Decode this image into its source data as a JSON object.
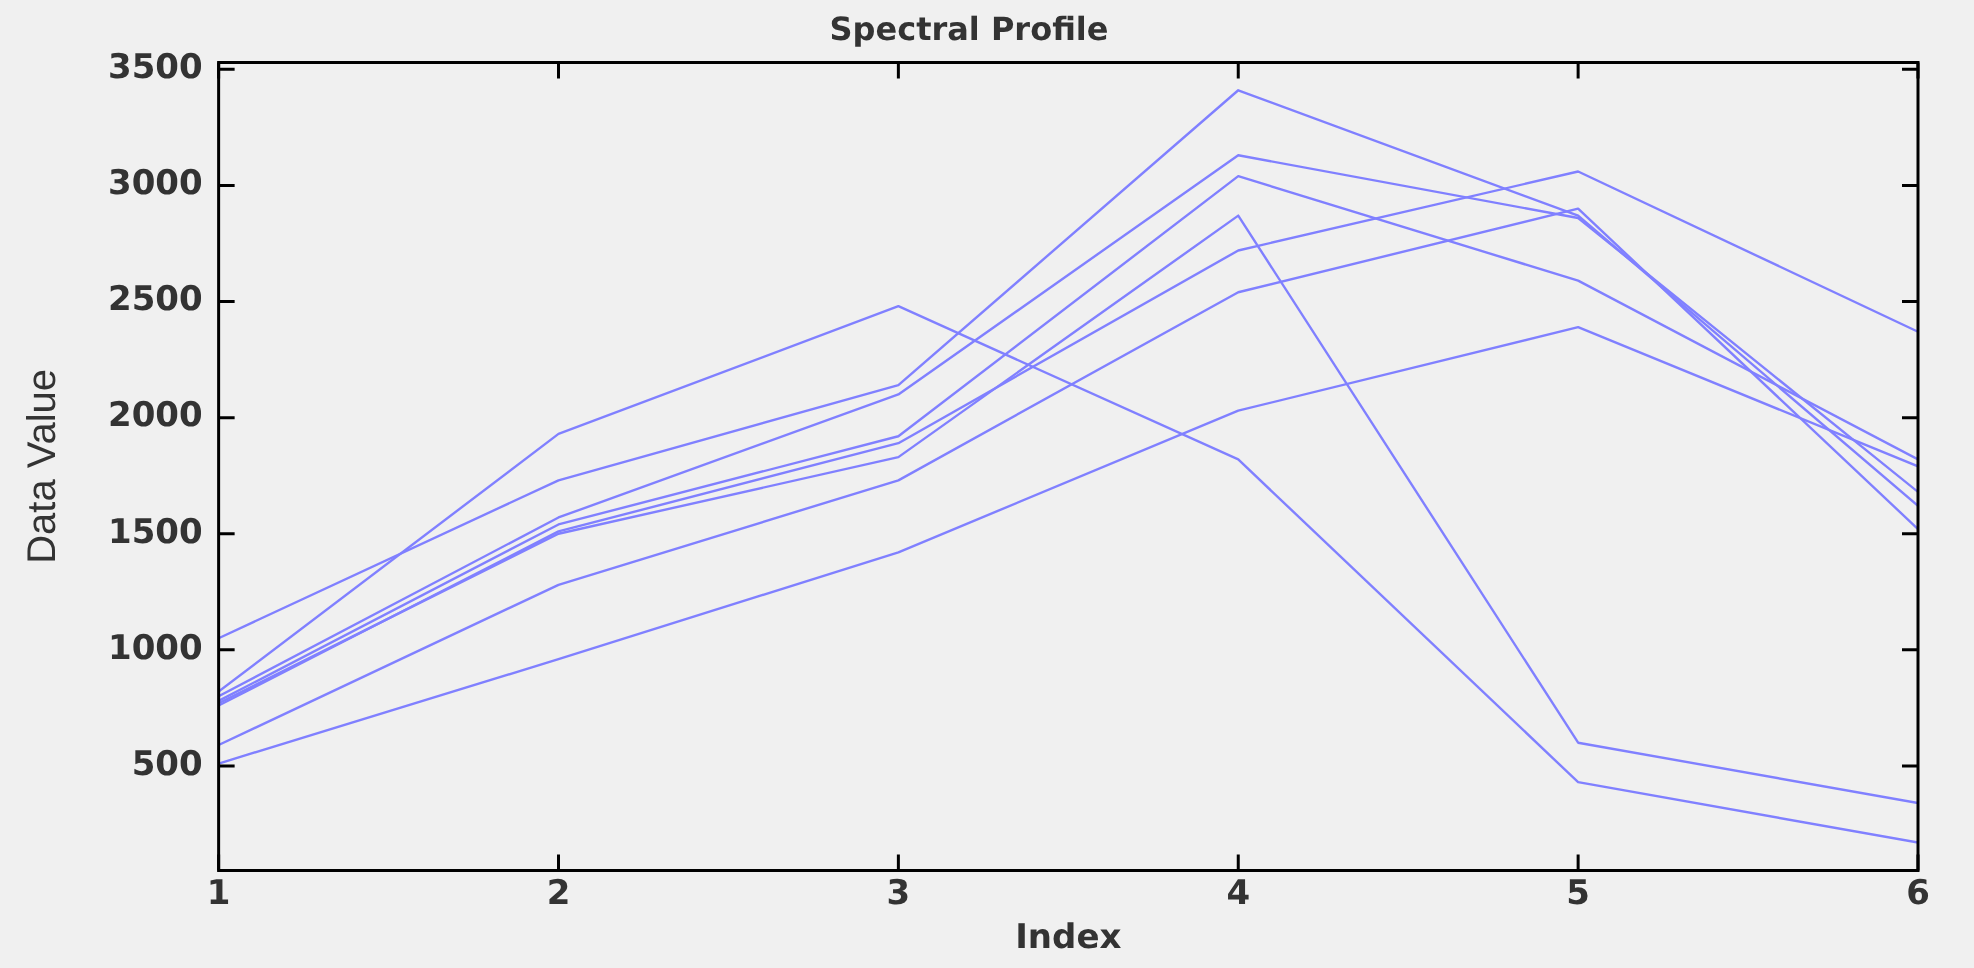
{
  "chart_data": {
    "type": "line",
    "title": "Spectral Profile",
    "xlabel": "Index",
    "ylabel": "Data Value",
    "x": [
      1,
      2,
      3,
      4,
      5,
      6
    ],
    "series": [
      {
        "color": "#8080ff",
        "values": [
          820,
          1930,
          2480,
          1820,
          430,
          170
        ]
      },
      {
        "color": "#8080ff",
        "values": [
          1050,
          1730,
          2140,
          3410,
          2870,
          1620
        ]
      },
      {
        "color": "#8080ff",
        "values": [
          800,
          1570,
          2100,
          3130,
          2860,
          1680
        ]
      },
      {
        "color": "#8080ff",
        "values": [
          780,
          1540,
          1920,
          3040,
          2590,
          1820
        ]
      },
      {
        "color": "#8080ff",
        "values": [
          760,
          1510,
          1890,
          2720,
          3060,
          2370
        ]
      },
      {
        "color": "#8080ff",
        "values": [
          770,
          1500,
          1830,
          2870,
          600,
          340
        ]
      },
      {
        "color": "#8080ff",
        "values": [
          590,
          1280,
          1730,
          2540,
          2900,
          1520
        ]
      },
      {
        "color": "#8080ff",
        "values": [
          510,
          960,
          1420,
          2030,
          2390,
          1790
        ]
      }
    ],
    "xlim": [
      1,
      6
    ],
    "xticks": [
      1,
      2,
      3,
      4,
      5,
      6
    ],
    "ylim": [
      50,
      3530
    ],
    "yticks": [
      500,
      1000,
      1500,
      2000,
      2500,
      3000,
      3500
    ],
    "grid": false,
    "legend": false,
    "marker": "none",
    "line_style": "solid"
  }
}
